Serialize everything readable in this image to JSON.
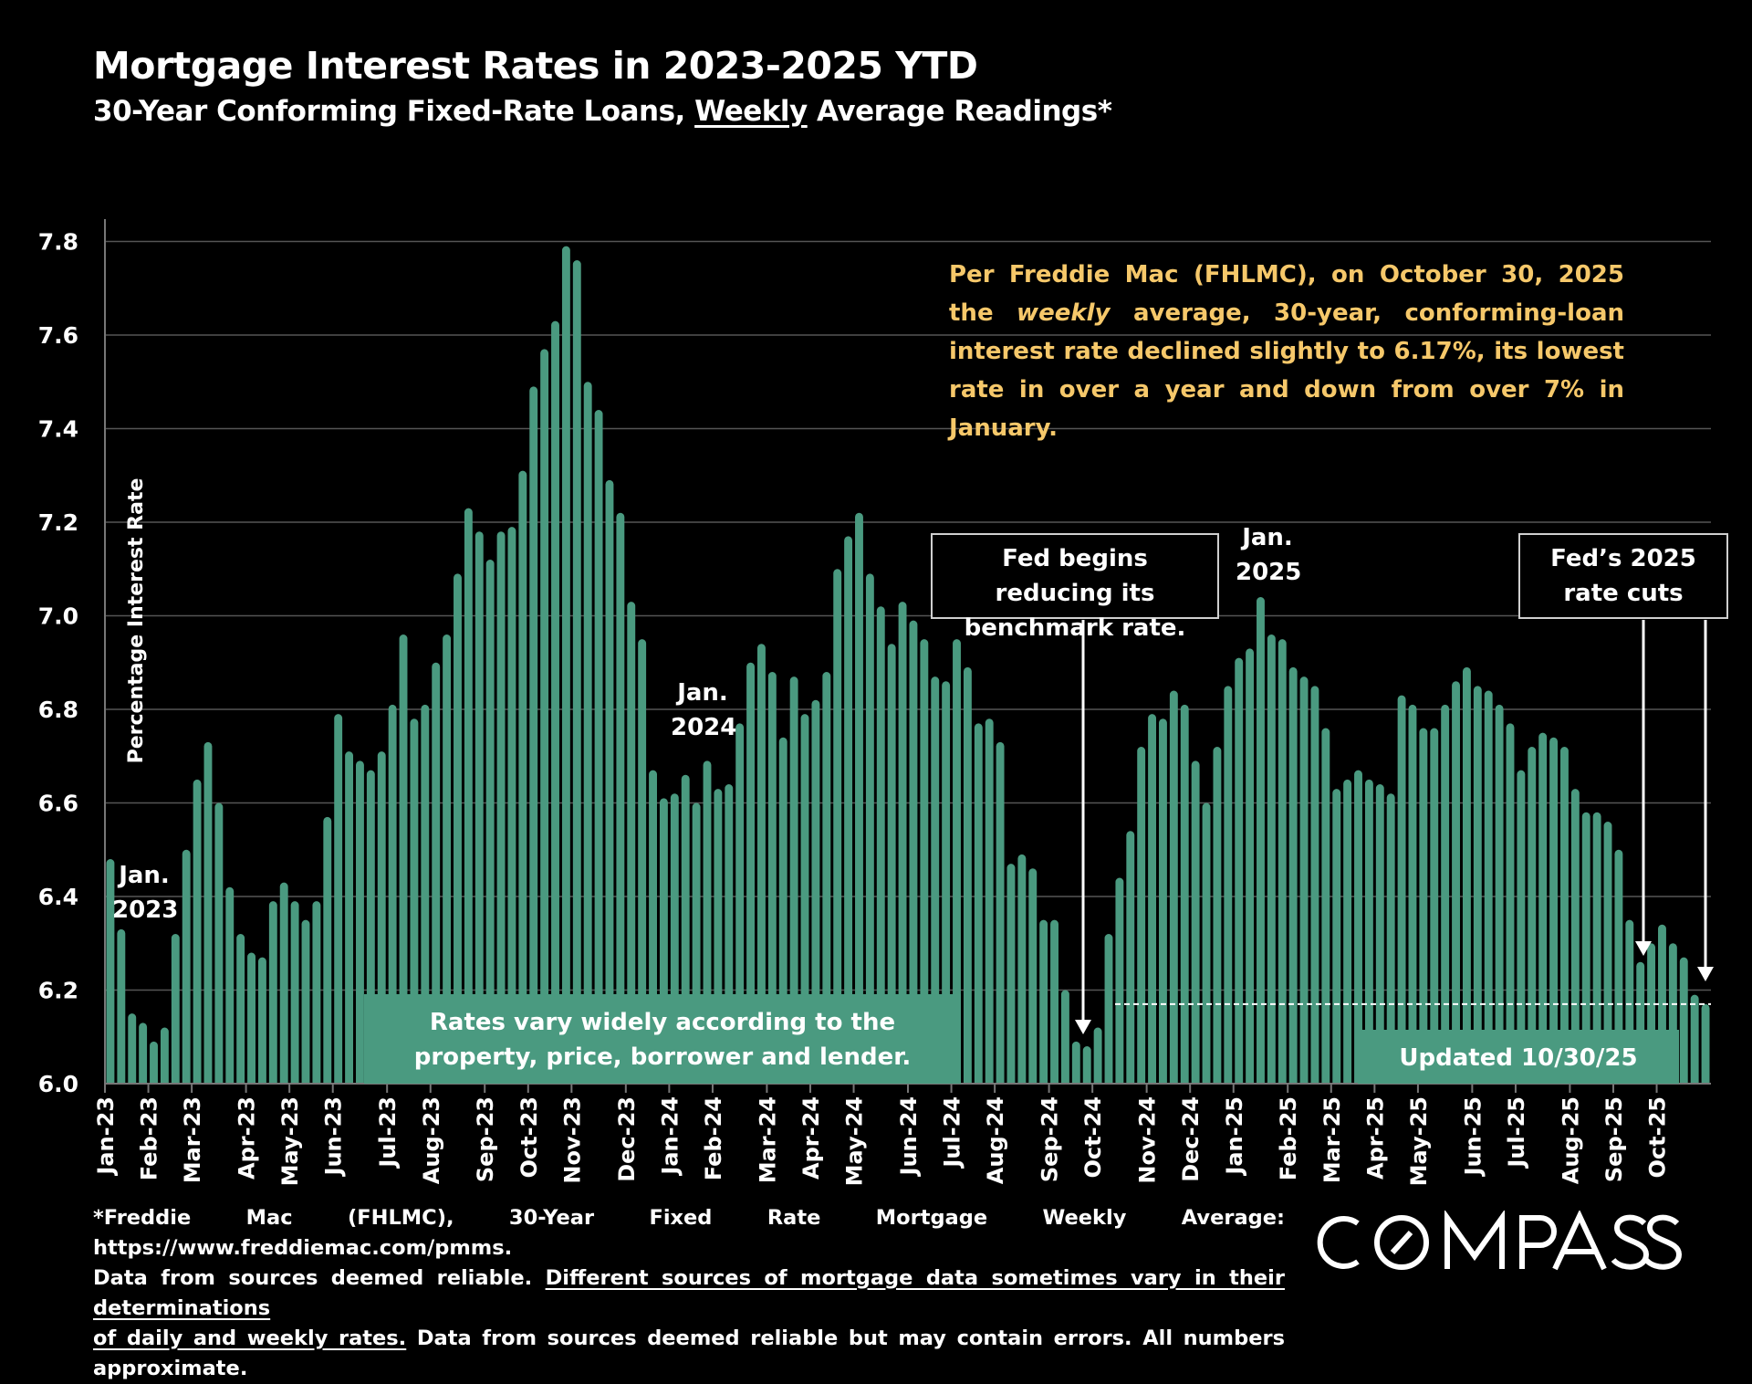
{
  "header": {
    "title": "Mortgage Interest Rates in 2023-2025 YTD",
    "subtitle_before": "30-Year Conforming Fixed-Rate Loans, ",
    "subtitle_underlined": "Weekly",
    "subtitle_after": " Average Readings*"
  },
  "annotations": {
    "note_before": "Per Freddie Mac (FHLMC), on October 30, 2025 the ",
    "note_italic": "weekly",
    "note_after": " average, 30-year, conforming-loan interest rate declined slightly to 6.17%, its lowest rate in over a year and down from over 7% in January.",
    "fed_begins": "Fed begins reducing its benchmark rate.",
    "fed_cuts": "Fed’s 2025 rate cuts",
    "jan2023": "Jan. 2023",
    "jan2024": "Jan. 2024",
    "jan2025": "Jan. 2025",
    "rates_vary": "Rates vary widely according to the property, price, borrower and lender.",
    "updated": "Updated 10/30/25"
  },
  "footer": {
    "line1": "*Freddie Mac (FHLMC), 30-Year Fixed Rate Mortgage Weekly Average:  https://www.freddiemac.com/pmms.",
    "line2_before": "Data from sources deemed reliable. ",
    "line2_underlined": "Different sources of mortgage data sometimes vary in their determinations",
    "line3_underlined": "of daily and weekly rates.",
    "line3_after": " Data from sources deemed reliable but may contain errors. All numbers approximate."
  },
  "logo": {
    "text": "COMPASS"
  },
  "colors": {
    "bar": "#4a9a80",
    "note_text": "#f6c86a",
    "background": "#000000",
    "grid": "#555555"
  },
  "chart_data": {
    "type": "bar",
    "title": "Mortgage Interest Rates in 2023-2025 YTD",
    "ylabel": "Percentage Interest  Rate",
    "xlabel": "",
    "ylim": [
      6.0,
      7.8
    ],
    "yticks": [
      "6.0",
      "6.2",
      "6.4",
      "6.6",
      "6.8",
      "7.0",
      "7.2",
      "7.4",
      "7.6",
      "7.8"
    ],
    "grid": true,
    "month_labels": [
      "Jan-23",
      "Feb-23",
      "Mar-23",
      "Apr-23",
      "May-23",
      "Jun-23",
      "Jul-23",
      "Aug-23",
      "Sep-23",
      "Oct-23",
      "Nov-23",
      "Dec-23",
      "Jan-24",
      "Feb-24",
      "Mar-24",
      "Apr-24",
      "May-24",
      "Jun-24",
      "Jul-24",
      "Aug-24",
      "Sep-24",
      "Oct-24",
      "Nov-24",
      "Dec-24",
      "Jan-25",
      "Feb-25",
      "Mar-25",
      "Apr-25",
      "May-25",
      "Jun-25",
      "Jul-25",
      "Aug-25",
      "Sep-25",
      "Oct-25"
    ],
    "x": [
      "2023-01-05",
      "2023-01-12",
      "2023-01-19",
      "2023-01-26",
      "2023-02-02",
      "2023-02-09",
      "2023-02-16",
      "2023-02-23",
      "2023-03-02",
      "2023-03-09",
      "2023-03-16",
      "2023-03-23",
      "2023-03-30",
      "2023-04-06",
      "2023-04-13",
      "2023-04-20",
      "2023-04-27",
      "2023-05-04",
      "2023-05-11",
      "2023-05-18",
      "2023-05-25",
      "2023-06-01",
      "2023-06-08",
      "2023-06-15",
      "2023-06-22",
      "2023-06-29",
      "2023-07-06",
      "2023-07-13",
      "2023-07-20",
      "2023-07-27",
      "2023-08-03",
      "2023-08-10",
      "2023-08-17",
      "2023-08-24",
      "2023-08-31",
      "2023-09-07",
      "2023-09-14",
      "2023-09-21",
      "2023-09-28",
      "2023-10-05",
      "2023-10-12",
      "2023-10-19",
      "2023-10-26",
      "2023-11-02",
      "2023-11-09",
      "2023-11-16",
      "2023-11-23",
      "2023-11-30",
      "2023-12-07",
      "2023-12-14",
      "2023-12-21",
      "2023-12-28",
      "2024-01-04",
      "2024-01-11",
      "2024-01-18",
      "2024-01-25",
      "2024-02-01",
      "2024-02-08",
      "2024-02-15",
      "2024-02-22",
      "2024-02-29",
      "2024-03-07",
      "2024-03-14",
      "2024-03-21",
      "2024-03-28",
      "2024-04-04",
      "2024-04-11",
      "2024-04-18",
      "2024-04-25",
      "2024-05-02",
      "2024-05-09",
      "2024-05-16",
      "2024-05-23",
      "2024-05-30",
      "2024-06-06",
      "2024-06-13",
      "2024-06-20",
      "2024-06-27",
      "2024-07-04",
      "2024-07-11",
      "2024-07-18",
      "2024-07-25",
      "2024-08-01",
      "2024-08-08",
      "2024-08-15",
      "2024-08-22",
      "2024-08-29",
      "2024-09-05",
      "2024-09-12",
      "2024-09-19",
      "2024-09-26",
      "2024-10-03",
      "2024-10-10",
      "2024-10-17",
      "2024-10-24",
      "2024-10-31",
      "2024-11-07",
      "2024-11-14",
      "2024-11-21",
      "2024-11-28",
      "2024-12-05",
      "2024-12-12",
      "2024-12-19",
      "2024-12-26",
      "2025-01-02",
      "2025-01-09",
      "2025-01-16",
      "2025-01-23",
      "2025-01-30",
      "2025-02-06",
      "2025-02-13",
      "2025-02-20",
      "2025-02-27",
      "2025-03-06",
      "2025-03-13",
      "2025-03-20",
      "2025-03-27",
      "2025-04-03",
      "2025-04-10",
      "2025-04-17",
      "2025-04-24",
      "2025-05-01",
      "2025-05-08",
      "2025-05-15",
      "2025-05-22",
      "2025-05-29",
      "2025-06-05",
      "2025-06-12",
      "2025-06-19",
      "2025-06-26",
      "2025-07-03",
      "2025-07-10",
      "2025-07-17",
      "2025-07-24",
      "2025-07-31",
      "2025-08-07",
      "2025-08-14",
      "2025-08-21",
      "2025-08-28",
      "2025-09-04",
      "2025-09-11",
      "2025-09-18",
      "2025-09-25",
      "2025-10-02",
      "2025-10-09",
      "2025-10-16",
      "2025-10-23",
      "2025-10-30"
    ],
    "values": [
      6.48,
      6.33,
      6.15,
      6.13,
      6.09,
      6.12,
      6.32,
      6.5,
      6.65,
      6.73,
      6.6,
      6.42,
      6.32,
      6.28,
      6.27,
      6.39,
      6.43,
      6.39,
      6.35,
      6.39,
      6.57,
      6.79,
      6.71,
      6.69,
      6.67,
      6.71,
      6.81,
      6.96,
      6.78,
      6.81,
      6.9,
      6.96,
      7.09,
      7.23,
      7.18,
      7.12,
      7.18,
      7.19,
      7.31,
      7.49,
      7.57,
      7.63,
      7.79,
      7.76,
      7.5,
      7.44,
      7.29,
      7.22,
      7.03,
      6.95,
      6.67,
      6.61,
      6.62,
      6.66,
      6.6,
      6.69,
      6.63,
      6.64,
      6.77,
      6.9,
      6.94,
      6.88,
      6.74,
      6.87,
      6.79,
      6.82,
      6.88,
      7.1,
      7.17,
      7.22,
      7.09,
      7.02,
      6.94,
      7.03,
      6.99,
      6.95,
      6.87,
      6.86,
      6.95,
      6.89,
      6.77,
      6.78,
      6.73,
      6.47,
      6.49,
      6.46,
      6.35,
      6.35,
      6.2,
      6.09,
      6.08,
      6.12,
      6.32,
      6.44,
      6.54,
      6.72,
      6.79,
      6.78,
      6.84,
      6.81,
      6.69,
      6.6,
      6.72,
      6.85,
      6.91,
      6.93,
      7.04,
      6.96,
      6.95,
      6.89,
      6.87,
      6.85,
      6.76,
      6.63,
      6.65,
      6.67,
      6.65,
      6.64,
      6.62,
      6.83,
      6.81,
      6.76,
      6.76,
      6.81,
      6.86,
      6.89,
      6.85,
      6.84,
      6.81,
      6.77,
      6.67,
      6.72,
      6.75,
      6.74,
      6.72,
      6.63,
      6.58,
      6.58,
      6.56,
      6.5,
      6.35,
      6.26,
      6.3,
      6.34,
      6.3,
      6.27,
      6.19,
      6.17
    ],
    "reference_line": 6.17
  }
}
